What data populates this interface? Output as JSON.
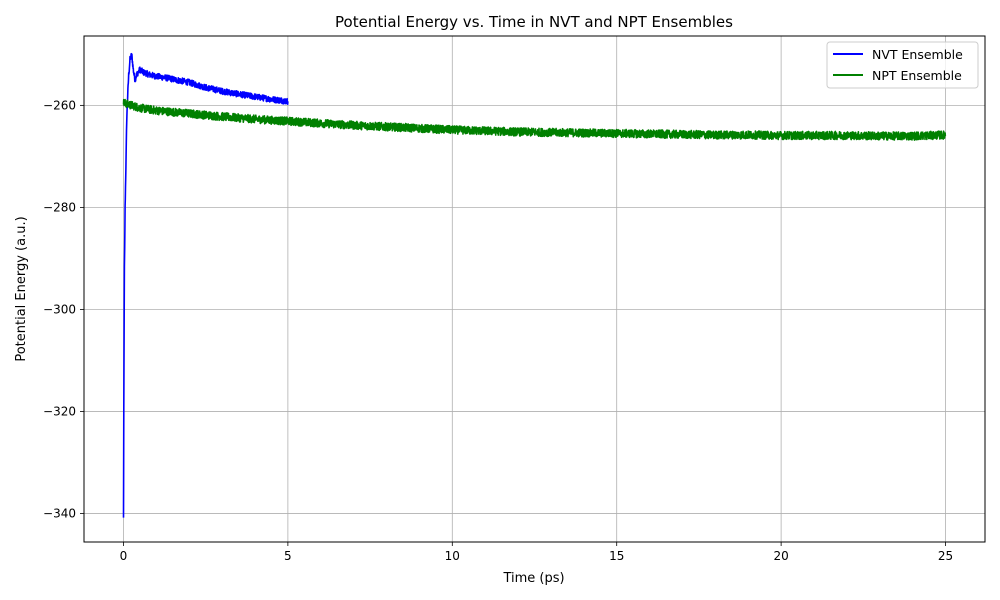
{
  "chart_data": {
    "type": "line",
    "title": "Potential Energy vs. Time in NVT and NPT Ensembles",
    "xlabel": "Time (ps)",
    "ylabel": "Potential Energy (a.u.)",
    "xlim": [
      -1.2,
      26.2
    ],
    "ylim": [
      -345.6,
      -246.4
    ],
    "x_ticks": [
      0,
      5,
      10,
      15,
      20,
      25
    ],
    "x_tick_labels": [
      "0",
      "5",
      "10",
      "15",
      "20",
      "25"
    ],
    "y_ticks": [
      -340,
      -320,
      -300,
      -280,
      -260
    ],
    "y_tick_labels": [
      "−340",
      "−320",
      "−300",
      "−280",
      "−260"
    ],
    "grid": true,
    "legend_position": "top-right",
    "series": [
      {
        "name": "NVT Ensemble",
        "color": "#0000ff",
        "noise": 0.6,
        "x": [
          0.0,
          0.01,
          0.02,
          0.03,
          0.05,
          0.08,
          0.1,
          0.13,
          0.16,
          0.2,
          0.25,
          0.3,
          0.35,
          0.4,
          0.5,
          0.6,
          0.8,
          1.0,
          1.3,
          1.6,
          2.0,
          2.5,
          3.0,
          3.5,
          4.0,
          4.5,
          5.0
        ],
        "y": [
          -341,
          -320,
          -305,
          -292,
          -280,
          -270,
          -263,
          -258,
          -254,
          -251,
          -250,
          -253,
          -255,
          -254,
          -253,
          -253.5,
          -254,
          -254.3,
          -254.6,
          -255,
          -255.5,
          -256.5,
          -257.2,
          -257.8,
          -258.3,
          -258.8,
          -259.2
        ]
      },
      {
        "name": "NPT Ensemble",
        "color": "#008000",
        "noise": 0.8,
        "x": [
          0.0,
          0.5,
          1.0,
          2.0,
          3.0,
          4.0,
          5.0,
          6.0,
          7.0,
          8.0,
          9.0,
          10.0,
          11.0,
          12.0,
          13.0,
          14.0,
          15.0,
          16.0,
          17.0,
          18.0,
          19.0,
          20.0,
          21.0,
          22.0,
          23.0,
          24.0,
          25.0
        ],
        "y": [
          -259.5,
          -260.5,
          -261,
          -261.6,
          -262.2,
          -262.7,
          -263.1,
          -263.5,
          -263.9,
          -264.2,
          -264.5,
          -264.8,
          -265.0,
          -265.2,
          -265.3,
          -265.4,
          -265.5,
          -265.6,
          -265.7,
          -265.8,
          -265.8,
          -265.9,
          -265.9,
          -265.9,
          -266.0,
          -266.0,
          -265.8
        ]
      }
    ]
  }
}
